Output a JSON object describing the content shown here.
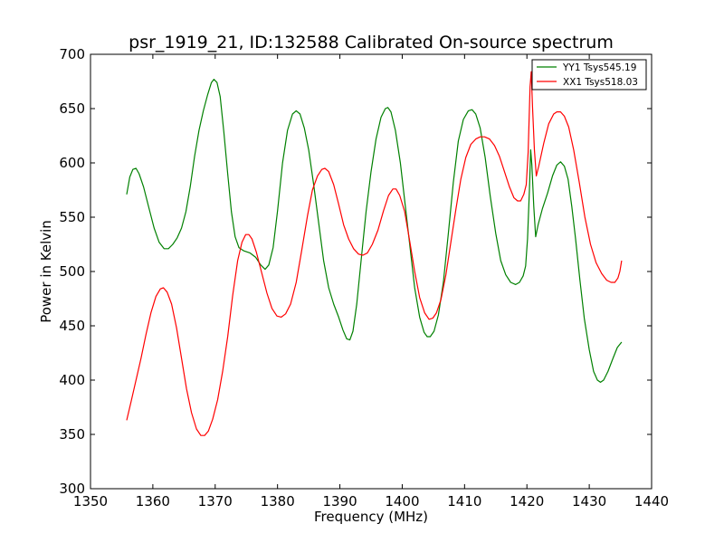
{
  "chart_data": {
    "type": "line",
    "title": "psr_1919_21, ID:132588 Calibrated On-source spectrum",
    "xlabel": "Frequency (MHz)",
    "ylabel": "Power in Kelvin",
    "xlim": [
      1350,
      1440
    ],
    "ylim": [
      300,
      700
    ],
    "xticks": [
      1350,
      1360,
      1370,
      1380,
      1390,
      1400,
      1410,
      1420,
      1430,
      1440
    ],
    "yticks": [
      300,
      350,
      400,
      450,
      500,
      550,
      600,
      650,
      700
    ],
    "grid": false,
    "legend_position": "top-right",
    "series": [
      {
        "name": "YY1 Tsys545.19",
        "color": "#008000",
        "points": [
          [
            1355.8,
            571
          ],
          [
            1356.3,
            587
          ],
          [
            1356.8,
            594
          ],
          [
            1357.3,
            595
          ],
          [
            1357.8,
            590
          ],
          [
            1358.5,
            578
          ],
          [
            1359.3,
            560
          ],
          [
            1360.2,
            540
          ],
          [
            1361.0,
            527
          ],
          [
            1361.8,
            521
          ],
          [
            1362.5,
            521
          ],
          [
            1363.2,
            525
          ],
          [
            1363.9,
            531
          ],
          [
            1364.6,
            540
          ],
          [
            1365.3,
            555
          ],
          [
            1366.0,
            578
          ],
          [
            1366.7,
            606
          ],
          [
            1367.4,
            630
          ],
          [
            1368.1,
            648
          ],
          [
            1368.8,
            663
          ],
          [
            1369.4,
            674
          ],
          [
            1369.8,
            677
          ],
          [
            1370.3,
            674
          ],
          [
            1370.8,
            661
          ],
          [
            1371.4,
            628
          ],
          [
            1372.0,
            590
          ],
          [
            1372.6,
            555
          ],
          [
            1373.2,
            532
          ],
          [
            1373.8,
            522
          ],
          [
            1374.6,
            519
          ],
          [
            1375.6,
            517
          ],
          [
            1376.5,
            513
          ],
          [
            1377.3,
            506
          ],
          [
            1378.0,
            502
          ],
          [
            1378.6,
            506
          ],
          [
            1379.3,
            522
          ],
          [
            1380.0,
            556
          ],
          [
            1380.8,
            600
          ],
          [
            1381.6,
            630
          ],
          [
            1382.4,
            645
          ],
          [
            1383.0,
            648
          ],
          [
            1383.6,
            645
          ],
          [
            1384.3,
            632
          ],
          [
            1385.0,
            612
          ],
          [
            1385.8,
            580
          ],
          [
            1386.6,
            545
          ],
          [
            1387.4,
            510
          ],
          [
            1388.2,
            485
          ],
          [
            1389.0,
            470
          ],
          [
            1389.8,
            458
          ],
          [
            1390.5,
            446
          ],
          [
            1391.1,
            438
          ],
          [
            1391.6,
            437
          ],
          [
            1392.1,
            445
          ],
          [
            1392.7,
            470
          ],
          [
            1393.4,
            510
          ],
          [
            1394.2,
            555
          ],
          [
            1395.0,
            592
          ],
          [
            1395.8,
            622
          ],
          [
            1396.6,
            642
          ],
          [
            1397.3,
            650
          ],
          [
            1397.7,
            651
          ],
          [
            1398.2,
            647
          ],
          [
            1398.9,
            630
          ],
          [
            1399.7,
            600
          ],
          [
            1400.5,
            560
          ],
          [
            1401.3,
            520
          ],
          [
            1402.0,
            485
          ],
          [
            1402.8,
            458
          ],
          [
            1403.5,
            444
          ],
          [
            1404.0,
            440
          ],
          [
            1404.5,
            440
          ],
          [
            1405.1,
            445
          ],
          [
            1405.8,
            460
          ],
          [
            1406.6,
            490
          ],
          [
            1407.4,
            535
          ],
          [
            1408.2,
            582
          ],
          [
            1409.0,
            620
          ],
          [
            1409.8,
            640
          ],
          [
            1410.6,
            648
          ],
          [
            1411.2,
            649
          ],
          [
            1411.8,
            645
          ],
          [
            1412.5,
            632
          ],
          [
            1413.3,
            605
          ],
          [
            1414.1,
            570
          ],
          [
            1415.0,
            535
          ],
          [
            1415.8,
            510
          ],
          [
            1416.6,
            497
          ],
          [
            1417.4,
            490
          ],
          [
            1418.2,
            488
          ],
          [
            1418.8,
            490
          ],
          [
            1419.4,
            496
          ],
          [
            1419.8,
            505
          ],
          [
            1420.1,
            530
          ],
          [
            1420.4,
            575
          ],
          [
            1420.6,
            612
          ],
          [
            1420.8,
            598
          ],
          [
            1421.1,
            560
          ],
          [
            1421.4,
            532
          ],
          [
            1421.8,
            543
          ],
          [
            1422.5,
            558
          ],
          [
            1423.3,
            572
          ],
          [
            1424.1,
            588
          ],
          [
            1424.8,
            598
          ],
          [
            1425.4,
            601
          ],
          [
            1426.0,
            597
          ],
          [
            1426.6,
            585
          ],
          [
            1427.2,
            560
          ],
          [
            1427.8,
            530
          ],
          [
            1428.5,
            492
          ],
          [
            1429.2,
            457
          ],
          [
            1430.0,
            428
          ],
          [
            1430.7,
            408
          ],
          [
            1431.3,
            400
          ],
          [
            1431.8,
            398
          ],
          [
            1432.3,
            400
          ],
          [
            1433.0,
            408
          ],
          [
            1433.8,
            420
          ],
          [
            1434.5,
            430
          ],
          [
            1435.2,
            435
          ]
        ]
      },
      {
        "name": "XX1 Tsys518.03",
        "color": "#ff0000",
        "points": [
          [
            1355.8,
            363
          ],
          [
            1356.5,
            380
          ],
          [
            1357.3,
            400
          ],
          [
            1358.1,
            420
          ],
          [
            1358.9,
            442
          ],
          [
            1359.7,
            462
          ],
          [
            1360.5,
            477
          ],
          [
            1361.2,
            484
          ],
          [
            1361.7,
            485
          ],
          [
            1362.3,
            481
          ],
          [
            1363.0,
            470
          ],
          [
            1363.8,
            448
          ],
          [
            1364.6,
            420
          ],
          [
            1365.4,
            392
          ],
          [
            1366.2,
            370
          ],
          [
            1367.0,
            355
          ],
          [
            1367.7,
            349
          ],
          [
            1368.3,
            349
          ],
          [
            1368.9,
            353
          ],
          [
            1369.6,
            364
          ],
          [
            1370.4,
            382
          ],
          [
            1371.2,
            408
          ],
          [
            1372.0,
            440
          ],
          [
            1372.8,
            478
          ],
          [
            1373.6,
            510
          ],
          [
            1374.3,
            527
          ],
          [
            1374.9,
            534
          ],
          [
            1375.4,
            534
          ],
          [
            1375.9,
            530
          ],
          [
            1376.6,
            518
          ],
          [
            1377.4,
            500
          ],
          [
            1378.3,
            480
          ],
          [
            1379.1,
            466
          ],
          [
            1379.9,
            459
          ],
          [
            1380.6,
            458
          ],
          [
            1381.3,
            461
          ],
          [
            1382.1,
            470
          ],
          [
            1383.0,
            490
          ],
          [
            1383.9,
            520
          ],
          [
            1384.8,
            551
          ],
          [
            1385.6,
            575
          ],
          [
            1386.4,
            588
          ],
          [
            1387.1,
            594
          ],
          [
            1387.6,
            595
          ],
          [
            1388.2,
            592
          ],
          [
            1389.0,
            580
          ],
          [
            1389.8,
            562
          ],
          [
            1390.6,
            543
          ],
          [
            1391.4,
            530
          ],
          [
            1392.2,
            521
          ],
          [
            1393.0,
            516
          ],
          [
            1393.7,
            515
          ],
          [
            1394.4,
            517
          ],
          [
            1395.2,
            525
          ],
          [
            1396.1,
            538
          ],
          [
            1397.0,
            556
          ],
          [
            1397.8,
            570
          ],
          [
            1398.5,
            576
          ],
          [
            1399.0,
            576
          ],
          [
            1399.6,
            570
          ],
          [
            1400.4,
            555
          ],
          [
            1401.2,
            528
          ],
          [
            1402.0,
            500
          ],
          [
            1402.8,
            476
          ],
          [
            1403.6,
            462
          ],
          [
            1404.3,
            456
          ],
          [
            1404.9,
            457
          ],
          [
            1405.5,
            462
          ],
          [
            1406.2,
            474
          ],
          [
            1407.0,
            497
          ],
          [
            1407.8,
            527
          ],
          [
            1408.6,
            557
          ],
          [
            1409.4,
            585
          ],
          [
            1410.2,
            605
          ],
          [
            1411.0,
            617
          ],
          [
            1411.8,
            622
          ],
          [
            1412.5,
            624
          ],
          [
            1413.2,
            624
          ],
          [
            1414.0,
            622
          ],
          [
            1414.8,
            616
          ],
          [
            1415.6,
            606
          ],
          [
            1416.4,
            592
          ],
          [
            1417.2,
            578
          ],
          [
            1417.9,
            568
          ],
          [
            1418.5,
            565
          ],
          [
            1419.0,
            565
          ],
          [
            1419.5,
            571
          ],
          [
            1419.9,
            580
          ],
          [
            1420.2,
            610
          ],
          [
            1420.5,
            670
          ],
          [
            1420.7,
            684
          ],
          [
            1420.9,
            652
          ],
          [
            1421.2,
            612
          ],
          [
            1421.5,
            588
          ],
          [
            1421.9,
            597
          ],
          [
            1422.7,
            618
          ],
          [
            1423.5,
            636
          ],
          [
            1424.3,
            645
          ],
          [
            1424.8,
            647
          ],
          [
            1425.4,
            647
          ],
          [
            1426.0,
            643
          ],
          [
            1426.7,
            633
          ],
          [
            1427.5,
            612
          ],
          [
            1428.4,
            582
          ],
          [
            1429.3,
            550
          ],
          [
            1430.2,
            525
          ],
          [
            1431.1,
            508
          ],
          [
            1432.0,
            498
          ],
          [
            1432.8,
            492
          ],
          [
            1433.5,
            490
          ],
          [
            1434.1,
            490
          ],
          [
            1434.6,
            494
          ],
          [
            1434.9,
            500
          ],
          [
            1435.2,
            510
          ]
        ]
      }
    ]
  }
}
